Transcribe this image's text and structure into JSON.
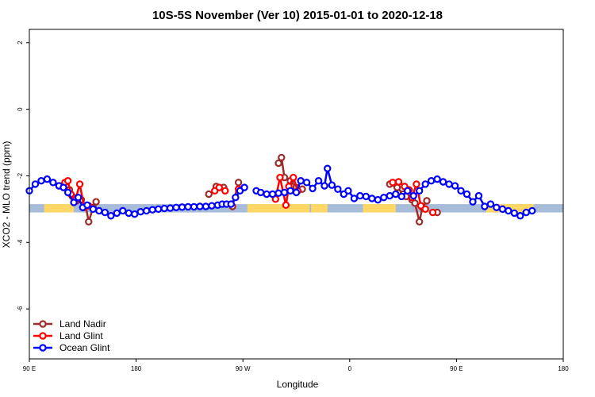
{
  "chart_data": {
    "type": "line",
    "title": "10S-5S November (Ver 10)   2015-01-01 to 2020-12-18",
    "xlabel": "Longitude",
    "ylabel": "XCO2 - MLO trend (ppm)",
    "xlim": [
      -90,
      270
    ],
    "ylim": [
      -7.5,
      2.4
    ],
    "x_ticks": [
      {
        "value": -90,
        "label": "90 E"
      },
      {
        "value": -18,
        "label": "180"
      },
      {
        "value": 54,
        "label": "90 W"
      },
      {
        "value": 126,
        "label": "0"
      },
      {
        "value": 198,
        "label": "90 E"
      },
      {
        "value": 270,
        "label": "180"
      }
    ],
    "y_ticks": [
      {
        "value": 2,
        "label": "2"
      },
      {
        "value": 0,
        "label": "0"
      },
      {
        "value": -2,
        "label": "-2"
      },
      {
        "value": -4,
        "label": "-4"
      },
      {
        "value": -6,
        "label": "-6"
      }
    ],
    "band": {
      "ymin": -3.1,
      "ymax": -2.85,
      "color": "#a7bcd9"
    },
    "land_segments": [
      {
        "x0": -80,
        "x1": -60
      },
      {
        "x0": 57,
        "x1": 99
      },
      {
        "x0": 100,
        "x1": 111
      },
      {
        "x0": 135,
        "x1": 157
      },
      {
        "x0": 218,
        "x1": 250
      }
    ],
    "land_color": "#ffd766",
    "series": [
      {
        "name": "Land Nadir",
        "color": "#9c2b2b",
        "segments": [
          [
            [
              -68,
              -2.3
            ],
            [
              -63,
              -2.42
            ],
            [
              -61,
              -2.62
            ],
            [
              -58,
              -2.75
            ],
            [
              -55,
              -2.72
            ],
            [
              -52,
              -2.9
            ],
            [
              -50,
              -3.38
            ],
            [
              -47,
              -2.95
            ],
            [
              -45,
              -2.78
            ]
          ],
          [
            [
              31,
              -2.55
            ]
          ],
          [
            [
              47,
              -2.92
            ],
            [
              51,
              -2.2
            ]
          ],
          [
            [
              36,
              -2.32
            ],
            [
              41,
              -2.35
            ]
          ],
          [
            [
              78,
              -1.62
            ],
            [
              80,
              -1.45
            ],
            [
              82,
              -2.05
            ],
            [
              86,
              -2.15
            ],
            [
              90,
              -2.35
            ],
            [
              94,
              -2.4
            ]
          ],
          [
            [
              153,
              -2.25
            ],
            [
              158,
              -2.35
            ],
            [
              162,
              -2.55
            ],
            [
              164,
              -2.62
            ],
            [
              168,
              -2.72
            ],
            [
              170,
              -2.82
            ],
            [
              173,
              -3.38
            ],
            [
              175,
              -2.95
            ],
            [
              178,
              -2.75
            ]
          ],
          [
            [
              185,
              -3.1
            ]
          ]
        ]
      },
      {
        "name": "Land Glint",
        "color": "#ff0000",
        "segments": [
          [
            [
              -70,
              -2.3
            ],
            [
              -66,
              -2.2
            ],
            [
              -64,
              -2.15
            ],
            [
              -62,
              -2.55
            ],
            [
              -59,
              -2.72
            ],
            [
              -56,
              -2.25
            ],
            [
              -53,
              -2.95
            ],
            [
              -50,
              -2.9
            ]
          ],
          [
            [
              51,
              -2.4
            ]
          ],
          [
            [
              35,
              -2.45
            ],
            [
              38,
              -2.35
            ],
            [
              42,
              -2.45
            ]
          ],
          [
            [
              76,
              -2.7
            ],
            [
              79,
              -2.05
            ],
            [
              83,
              -2.88
            ],
            [
              85,
              -2.32
            ],
            [
              88,
              -2.05
            ],
            [
              91,
              -2.45
            ]
          ],
          [
            [
              155,
              -2.2
            ],
            [
              159,
              -2.18
            ],
            [
              163,
              -2.32
            ],
            [
              166,
              -2.42
            ],
            [
              168,
              -2.65
            ],
            [
              171,
              -2.25
            ],
            [
              174,
              -2.9
            ],
            [
              177,
              -3.0
            ]
          ],
          [
            [
              182,
              -3.1
            ]
          ]
        ]
      },
      {
        "name": "Ocean Glint",
        "color": "#0000ff",
        "segments": [
          [
            [
              -90,
              -2.45
            ],
            [
              -86,
              -2.25
            ],
            [
              -82,
              -2.15
            ],
            [
              -78,
              -2.1
            ],
            [
              -74,
              -2.2
            ],
            [
              -70,
              -2.3
            ],
            [
              -67,
              -2.35
            ],
            [
              -64,
              -2.5
            ],
            [
              -60,
              -2.8
            ],
            [
              -57,
              -2.65
            ],
            [
              -54,
              -2.95
            ],
            [
              -51,
              -2.88
            ],
            [
              -47,
              -3.0
            ],
            [
              -43,
              -3.05
            ],
            [
              -39,
              -3.1
            ],
            [
              -35,
              -3.2
            ],
            [
              -31,
              -3.12
            ],
            [
              -27,
              -3.05
            ],
            [
              -23,
              -3.12
            ],
            [
              -19,
              -3.15
            ],
            [
              -15,
              -3.08
            ],
            [
              -11,
              -3.05
            ],
            [
              -7,
              -3.02
            ],
            [
              -3,
              -3.0
            ],
            [
              1,
              -2.98
            ],
            [
              5,
              -2.97
            ],
            [
              9,
              -2.95
            ],
            [
              13,
              -2.94
            ],
            [
              17,
              -2.93
            ],
            [
              21,
              -2.93
            ],
            [
              25,
              -2.92
            ],
            [
              29,
              -2.92
            ],
            [
              33,
              -2.9
            ],
            [
              37,
              -2.88
            ],
            [
              40,
              -2.85
            ],
            [
              43,
              -2.85
            ],
            [
              46,
              -2.85
            ],
            [
              49,
              -2.65
            ],
            [
              52,
              -2.45
            ],
            [
              55,
              -2.35
            ]
          ],
          [
            [
              63,
              -2.45
            ],
            [
              66,
              -2.5
            ],
            [
              70,
              -2.55
            ],
            [
              74,
              -2.55
            ],
            [
              78,
              -2.52
            ],
            [
              82,
              -2.5
            ],
            [
              86,
              -2.45
            ],
            [
              90,
              -2.5
            ],
            [
              93,
              -2.15
            ],
            [
              97,
              -2.2
            ],
            [
              101,
              -2.38
            ],
            [
              105,
              -2.15
            ],
            [
              109,
              -2.3
            ],
            [
              111,
              -1.78
            ],
            [
              114,
              -2.28
            ],
            [
              118,
              -2.4
            ],
            [
              122,
              -2.55
            ],
            [
              125,
              -2.45
            ],
            [
              129,
              -2.68
            ]
          ],
          [
            [
              133,
              -2.6
            ],
            [
              137,
              -2.62
            ],
            [
              141,
              -2.68
            ],
            [
              145,
              -2.72
            ],
            [
              149,
              -2.65
            ],
            [
              153,
              -2.6
            ],
            [
              157,
              -2.55
            ],
            [
              161,
              -2.62
            ],
            [
              165,
              -2.45
            ],
            [
              169,
              -2.6
            ],
            [
              173,
              -2.45
            ],
            [
              177,
              -2.25
            ],
            [
              181,
              -2.15
            ],
            [
              185,
              -2.1
            ],
            [
              189,
              -2.18
            ],
            [
              193,
              -2.25
            ],
            [
              197,
              -2.3
            ],
            [
              201,
              -2.45
            ],
            [
              205,
              -2.55
            ],
            [
              209,
              -2.78
            ],
            [
              213,
              -2.6
            ],
            [
              217,
              -2.92
            ],
            [
              221,
              -2.85
            ],
            [
              225,
              -2.95
            ],
            [
              229,
              -3.0
            ],
            [
              233,
              -3.05
            ],
            [
              237,
              -3.12
            ],
            [
              241,
              -3.2
            ],
            [
              245,
              -3.1
            ],
            [
              249,
              -3.05
            ]
          ]
        ]
      }
    ],
    "legend": [
      {
        "name": "Land Nadir",
        "color": "#9c2b2b"
      },
      {
        "name": "Land Glint",
        "color": "#ff0000"
      },
      {
        "name": "Ocean Glint",
        "color": "#0000ff"
      }
    ],
    "legend_position": "bottom-left"
  }
}
